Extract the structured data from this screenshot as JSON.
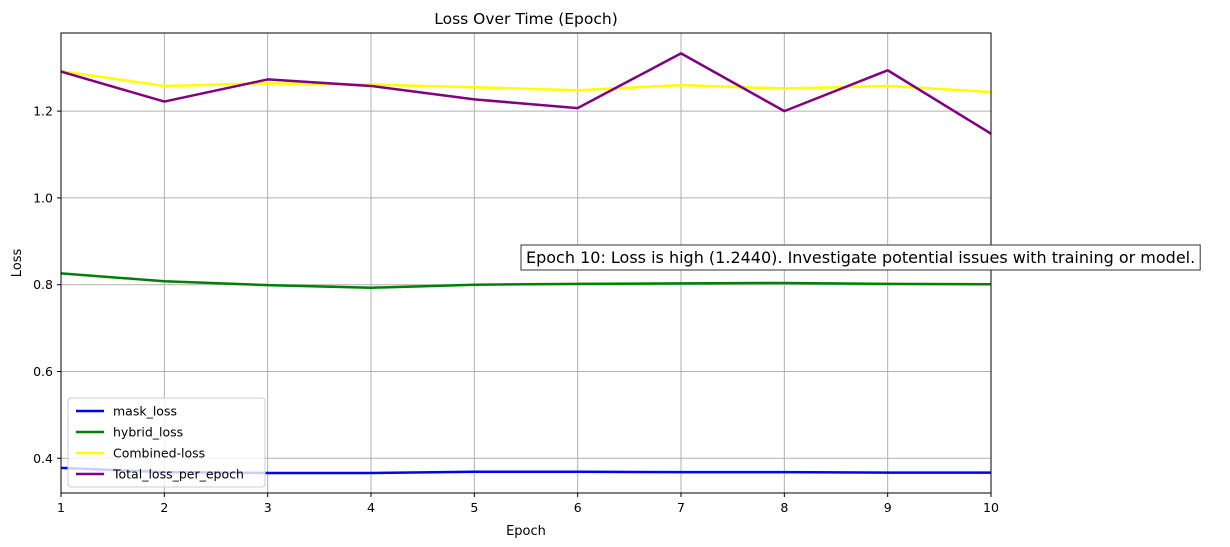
{
  "chart_data": {
    "type": "line",
    "title": "Loss Over Time (Epoch)",
    "xlabel": "Epoch",
    "ylabel": "Loss",
    "x": [
      1,
      2,
      3,
      4,
      5,
      6,
      7,
      8,
      9,
      10
    ],
    "xlim": [
      1,
      10
    ],
    "ylim": [
      0.32,
      1.38
    ],
    "xticks": [
      "1",
      "2",
      "3",
      "4",
      "5",
      "6",
      "7",
      "8",
      "9",
      "10"
    ],
    "yticks": [
      {
        "value": 0.4,
        "label": "0.4"
      },
      {
        "value": 0.6,
        "label": "0.6"
      },
      {
        "value": 0.8,
        "label": "0.8"
      },
      {
        "value": 1.0,
        "label": "1.0"
      },
      {
        "value": 1.2,
        "label": "1.2"
      }
    ],
    "grid": true,
    "legend_position": "lower-left",
    "series": [
      {
        "name": "mask_loss",
        "color": "#0000ff",
        "values": [
          0.378,
          0.368,
          0.366,
          0.366,
          0.369,
          0.369,
          0.368,
          0.368,
          0.367,
          0.367
        ]
      },
      {
        "name": "hybrid_loss",
        "color": "#008000",
        "values": [
          0.826,
          0.808,
          0.799,
          0.793,
          0.8,
          0.802,
          0.803,
          0.804,
          0.802,
          0.801
        ]
      },
      {
        "name": "Combined-loss",
        "color": "#ffff00",
        "values": [
          1.292,
          1.258,
          1.264,
          1.261,
          1.255,
          1.248,
          1.26,
          1.252,
          1.258,
          1.244
        ]
      },
      {
        "name": "Total_loss_per_epoch",
        "color": "#800080",
        "values": [
          1.291,
          1.222,
          1.273,
          1.258,
          1.227,
          1.207,
          1.333,
          1.2,
          1.294,
          1.148
        ]
      }
    ],
    "annotation": {
      "text": "Epoch 10: Loss is high (1.2440). Investigate potential issues with training or model.",
      "x": 5.5,
      "y": 0.85
    }
  }
}
